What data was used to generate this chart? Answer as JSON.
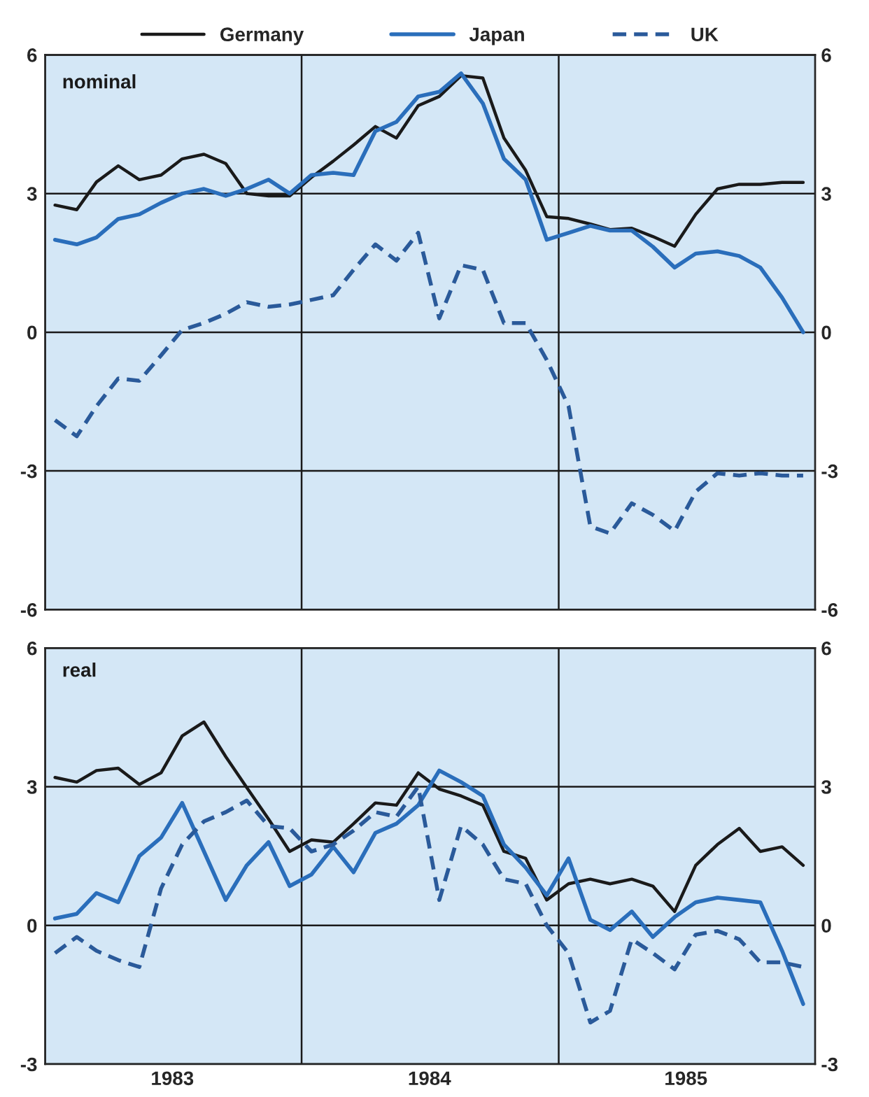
{
  "chart_data": [
    {
      "type": "line",
      "title": "nominal",
      "legend": "top",
      "grid": "y",
      "tick_labels": "y",
      "line_style": "solid",
      "xlim": [
        "1983-01-01",
        "1986-01-01"
      ],
      "ylim": [
        -6,
        6
      ],
      "yticks": [
        -6,
        -3,
        0,
        3,
        6
      ],
      "y2lim": [
        -6,
        6
      ],
      "y2ticks": [
        -6,
        -3,
        0,
        3,
        6
      ],
      "x": [
        "1983-01-15",
        "1983-02-15",
        "1983-03-15",
        "1983-04-15",
        "1983-05-15",
        "1983-06-15",
        "1983-07-15",
        "1983-08-15",
        "1983-09-15",
        "1983-10-15",
        "1983-11-15",
        "1983-12-15",
        "1984-01-15",
        "1984-02-15",
        "1984-03-15",
        "1984-04-15",
        "1984-05-15",
        "1984-06-15",
        "1984-07-15",
        "1984-08-15",
        "1984-09-15",
        "1984-10-15",
        "1984-11-15",
        "1984-12-15",
        "1985-01-15",
        "1985-02-15",
        "1985-03-15",
        "1985-04-15",
        "1985-05-15",
        "1985-06-15",
        "1985-07-15",
        "1985-08-15",
        "1985-09-15",
        "1985-10-15",
        "1985-11-15",
        "1985-12-15"
      ],
      "ref_lines": [
        {
          "axis": "x",
          "value": "1984-01-01",
          "label": null,
          "color": "#1a1a1a"
        },
        {
          "axis": "x",
          "value": "1985-01-01",
          "label": null,
          "color": "#1a1a1a"
        }
      ],
      "series": [
        {
          "name": "Germany",
          "color": "#1a1a1a",
          "values": [
            2.75,
            2.65,
            3.25,
            3.6,
            3.3,
            3.4,
            3.75,
            3.85,
            3.65,
            3.0,
            2.95,
            2.95,
            3.35,
            3.7,
            4.05,
            4.45,
            4.2,
            4.9,
            5.1,
            5.55,
            5.5,
            4.2,
            3.5,
            2.5,
            2.46,
            2.34,
            2.22,
            2.25,
            2.07,
            1.86,
            2.55,
            3.1,
            3.2,
            3.2,
            3.24,
            3.24
          ]
        },
        {
          "name": "Japan",
          "color": "#2a6ebb",
          "values": [
            2.0,
            1.9,
            2.05,
            2.45,
            2.55,
            2.8,
            3.0,
            3.1,
            2.95,
            3.1,
            3.3,
            3.0,
            3.4,
            3.45,
            3.4,
            4.35,
            4.55,
            5.1,
            5.2,
            5.6,
            4.95,
            3.75,
            3.3,
            2.0,
            2.15,
            2.3,
            2.2,
            2.2,
            1.85,
            1.4,
            1.7,
            1.75,
            1.65,
            1.4,
            0.75,
            0.0
          ]
        },
        {
          "name": "UK",
          "color": "#2a5a9a",
          "line_style": "dashed",
          "values": [
            -1.9,
            -2.25,
            -1.6,
            -1.0,
            -1.05,
            -0.5,
            0.05,
            0.2,
            0.4,
            0.65,
            0.55,
            0.6,
            0.7,
            0.8,
            1.35,
            1.9,
            1.55,
            2.15,
            0.3,
            1.45,
            1.35,
            0.2,
            0.2,
            -0.6,
            -1.6,
            -4.2,
            -4.35,
            -3.7,
            -3.95,
            -4.3,
            -3.45,
            -3.05,
            -3.1,
            -3.05,
            -3.1,
            -3.1
          ]
        }
      ]
    },
    {
      "type": "line",
      "title": "real",
      "grid": "y",
      "line_style": "solid",
      "xlim": [
        "1983-01-01",
        "1986-01-01"
      ],
      "xticks": [
        {
          "value": "1983-07-01",
          "label": "1983"
        },
        {
          "value": "1984-07-01",
          "label": "1984"
        },
        {
          "value": "1985-07-01",
          "label": "1985"
        }
      ],
      "ylim": [
        -3,
        6
      ],
      "yticks": [
        -3,
        0,
        3,
        6
      ],
      "y2lim": [
        -3,
        6
      ],
      "y2ticks": [
        -3,
        0,
        3,
        6
      ],
      "x": [
        "1983-01-15",
        "1983-02-15",
        "1983-03-15",
        "1983-04-15",
        "1983-05-15",
        "1983-06-15",
        "1983-07-15",
        "1983-08-15",
        "1983-09-15",
        "1983-10-15",
        "1983-11-15",
        "1983-12-15",
        "1984-01-15",
        "1984-02-15",
        "1984-03-15",
        "1984-04-15",
        "1984-05-15",
        "1984-06-15",
        "1984-07-15",
        "1984-08-15",
        "1984-09-15",
        "1984-10-15",
        "1984-11-15",
        "1984-12-15",
        "1985-01-15",
        "1985-02-15",
        "1985-03-15",
        "1985-04-15",
        "1985-05-15",
        "1985-06-15",
        "1985-07-15",
        "1985-08-15",
        "1985-09-15",
        "1985-10-15",
        "1985-11-15",
        "1985-12-15"
      ],
      "ref_lines": [
        {
          "axis": "x",
          "value": "1984-01-01",
          "label": null,
          "color": "#1a1a1a"
        },
        {
          "axis": "x",
          "value": "1985-01-01",
          "label": null,
          "color": "#1a1a1a"
        }
      ],
      "series": [
        {
          "color": "#1a1a1a",
          "values": [
            3.2,
            3.1,
            3.35,
            3.4,
            3.05,
            3.3,
            4.1,
            4.4,
            3.65,
            2.98,
            2.3,
            1.6,
            1.85,
            1.8,
            2.2,
            2.65,
            2.6,
            3.3,
            2.95,
            2.8,
            2.6,
            1.6,
            1.45,
            0.55,
            0.9,
            1.0,
            0.9,
            1.0,
            0.85,
            0.3,
            1.3,
            1.75,
            2.1,
            1.6,
            1.7,
            1.3
          ]
        },
        {
          "color": "#2a6ebb",
          "values": [
            0.15,
            0.25,
            0.7,
            0.5,
            1.5,
            1.9,
            2.65,
            1.6,
            0.55,
            1.3,
            1.8,
            0.85,
            1.1,
            1.7,
            1.15,
            2.0,
            2.2,
            2.6,
            3.35,
            3.1,
            2.8,
            1.75,
            1.25,
            0.65,
            1.45,
            0.12,
            -0.1,
            0.3,
            -0.25,
            0.18,
            0.5,
            0.6,
            0.55,
            0.5,
            -0.55,
            -1.7
          ]
        },
        {
          "color": "#2a5a9a",
          "line_style": "dashed",
          "values": [
            -0.6,
            -0.25,
            -0.55,
            -0.75,
            -0.9,
            0.8,
            1.75,
            2.25,
            2.45,
            2.7,
            2.15,
            2.1,
            1.6,
            1.75,
            2.05,
            2.45,
            2.35,
            3.0,
            0.55,
            2.15,
            1.75,
            1.0,
            0.9,
            0.0,
            -0.6,
            -2.1,
            -1.85,
            -0.3,
            -0.6,
            -0.95,
            -0.2,
            -0.12,
            -0.3,
            -0.8,
            -0.8,
            -0.9
          ]
        }
      ]
    }
  ]
}
